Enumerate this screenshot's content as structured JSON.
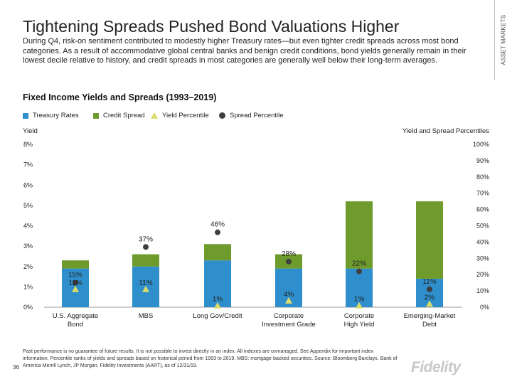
{
  "side_label": "ASSET MARKETS",
  "title": "Tightening Spreads Pushed Bond Valuations Higher",
  "subtitle": "During Q4, risk-on sentiment contributed to modestly higher Treasury rates—but even tighter credit spreads across most bond categories. As a result of accommodative global central banks and benign credit conditions, bond yields generally remain in their lowest decile relative to history, and credit spreads in most categories are generally well below their long-term averages.",
  "colors": {
    "treasury": "#2e8fcc",
    "spread": "#6e9b2c",
    "yield_percentile": "#d9dc6a",
    "spread_percentile": "#3f3f3f"
  },
  "chart_data": {
    "type": "bar",
    "title": "Fixed Income Yields and Spreads (1993–2019)",
    "legend": [
      "Treasury Rates",
      "Credit Spread",
      "Yield Percentile",
      "Spread Percentile"
    ],
    "legend_position": "top-left",
    "ylabel_left": "Yield",
    "ylabel_right": "Yield and Spread Percentiles",
    "ylim_left": [
      0,
      8
    ],
    "ylim_right": [
      0,
      100
    ],
    "yticks_left": [
      "0%",
      "1%",
      "2%",
      "3%",
      "4%",
      "5%",
      "6%",
      "7%",
      "8%"
    ],
    "yticks_right": [
      "0%",
      "10%",
      "20%",
      "30%",
      "40%",
      "50%",
      "60%",
      "70%",
      "80%",
      "90%",
      "100%"
    ],
    "categories": [
      "U.S. Aggregate Bond",
      "MBS",
      "Long Gov/Credit",
      "Corporate Investment Grade",
      "Corporate High Yield",
      "Emerging-Market Debt"
    ],
    "treasury_rates": [
      1.9,
      2.0,
      2.3,
      1.9,
      1.9,
      1.4
    ],
    "credit_spreads": [
      0.4,
      0.6,
      0.8,
      0.7,
      3.3,
      3.8
    ],
    "yield_percentile": [
      11,
      11,
      1,
      4,
      1,
      2
    ],
    "yield_percentile_labels": [
      "11%",
      "11%",
      "1%",
      "4%",
      "1%",
      "2%"
    ],
    "spread_percentile": [
      15,
      37,
      46,
      28,
      22,
      11
    ],
    "spread_percentile_labels": [
      "15%",
      "37%",
      "46%",
      "28%",
      "22%",
      "11%"
    ],
    "grid": false
  },
  "footnote": "Past performance is no guarantee of future results. It is not possible to invest directly in an index. All indexes are unmanaged. See Appendix for important index information. Percentile ranks of yields and spreads based on historical period from 1993 to 2019. MBS: mortgage-backed securities. Source: Bloomberg Barclays, Bank of America Merrill Lynch, JP Morgan, Fidelity Investments (AART), as of 12/31/19.",
  "page_number": "36",
  "logo_text": "Fidelity"
}
